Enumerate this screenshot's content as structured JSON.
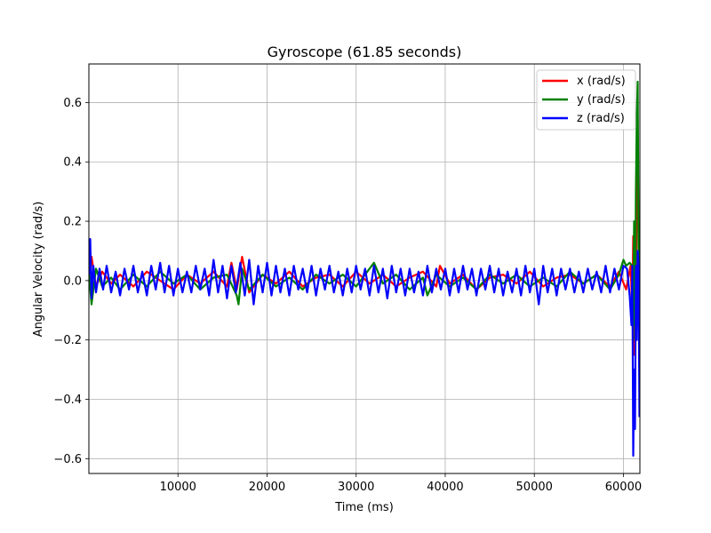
{
  "chart_data": {
    "type": "line",
    "title": "Gyroscope (61.85 seconds)",
    "xlabel": "Time (ms)",
    "ylabel": "Angular Velocity (rad/s)",
    "xlim": [
      0,
      61850
    ],
    "ylim": [
      -0.65,
      0.73
    ],
    "xticks": [
      10000,
      20000,
      30000,
      40000,
      50000,
      60000
    ],
    "xtick_labels": [
      "10000",
      "20000",
      "30000",
      "40000",
      "50000",
      "60000"
    ],
    "yticks": [
      -0.6,
      -0.4,
      -0.2,
      0.0,
      0.2,
      0.4,
      0.6
    ],
    "ytick_labels": [
      "−0.6",
      "−0.4",
      "−0.2",
      "0.0",
      "0.2",
      "0.4",
      "0.6"
    ],
    "grid": true,
    "legend_position": "upper-right",
    "series": [
      {
        "name": "x (rad/s)",
        "color": "#ff0000",
        "x": [
          0,
          300,
          800,
          1500,
          2500,
          3500,
          5000,
          6500,
          8000,
          9500,
          11000,
          12500,
          14000,
          15500,
          16000,
          16600,
          17200,
          18000,
          19500,
          21000,
          22500,
          24000,
          25500,
          27000,
          28500,
          30000,
          31500,
          33000,
          34500,
          36000,
          37500,
          39000,
          39400,
          40500,
          42000,
          43500,
          45000,
          46500,
          48000,
          49500,
          51000,
          52500,
          54000,
          55500,
          57000,
          58500,
          59500,
          60300,
          60800,
          61000,
          61100,
          61200,
          61300,
          61400,
          61500,
          61600,
          61700,
          61800
        ],
        "y": [
          0.02,
          0.08,
          -0.02,
          0.03,
          -0.01,
          0.02,
          -0.02,
          0.03,
          0.0,
          -0.03,
          0.02,
          -0.01,
          0.03,
          -0.02,
          0.06,
          -0.03,
          0.08,
          -0.04,
          0.02,
          -0.01,
          0.03,
          -0.02,
          0.01,
          0.02,
          -0.02,
          0.03,
          -0.01,
          0.02,
          -0.02,
          0.01,
          0.03,
          -0.02,
          0.05,
          -0.01,
          0.02,
          -0.03,
          0.01,
          0.02,
          -0.01,
          0.03,
          -0.02,
          0.01,
          0.02,
          -0.01,
          0.02,
          -0.02,
          0.03,
          -0.03,
          0.05,
          -0.1,
          0.15,
          -0.25,
          0.1,
          -0.05,
          0.35,
          0.5,
          0.1,
          -0.05
        ]
      },
      {
        "name": "y (rad/s)",
        "color": "#008000",
        "x": [
          0,
          300,
          800,
          1500,
          2500,
          3500,
          5000,
          6500,
          8000,
          9500,
          11000,
          12500,
          14000,
          15500,
          16600,
          16800,
          17200,
          18000,
          19500,
          21000,
          22500,
          24000,
          25500,
          27000,
          28500,
          30000,
          32000,
          33000,
          34500,
          36000,
          37500,
          38000,
          39000,
          40500,
          42000,
          43500,
          45000,
          46500,
          48000,
          49500,
          51000,
          52500,
          54000,
          55500,
          57000,
          58500,
          59500,
          60000,
          60300,
          60700,
          61000,
          61100,
          61200,
          61300,
          61400,
          61500,
          61600,
          61700,
          61800
        ],
        "y": [
          0.03,
          -0.08,
          0.04,
          -0.02,
          0.01,
          -0.03,
          0.02,
          -0.02,
          0.03,
          -0.01,
          0.02,
          -0.03,
          0.01,
          0.02,
          -0.05,
          -0.08,
          0.04,
          -0.03,
          0.02,
          -0.02,
          0.01,
          -0.03,
          0.02,
          -0.01,
          0.02,
          -0.02,
          0.06,
          -0.01,
          0.02,
          -0.03,
          0.01,
          -0.05,
          0.02,
          -0.02,
          0.01,
          -0.03,
          0.02,
          -0.01,
          0.02,
          -0.02,
          0.01,
          -0.02,
          0.03,
          -0.01,
          0.02,
          -0.03,
          0.02,
          0.07,
          0.05,
          0.06,
          0.05,
          -0.15,
          0.2,
          -0.2,
          0.3,
          0.55,
          0.67,
          0.1,
          -0.05
        ]
      },
      {
        "name": "z (rad/s)",
        "color": "#0000ff",
        "x": [
          0,
          150,
          300,
          500,
          800,
          1200,
          1600,
          2000,
          2500,
          3000,
          3500,
          4000,
          4500,
          5000,
          5500,
          6000,
          6500,
          7000,
          7500,
          8000,
          8500,
          9000,
          9500,
          10000,
          10500,
          11000,
          11500,
          12000,
          12500,
          13000,
          13500,
          14000,
          14500,
          15000,
          15500,
          16000,
          16500,
          17000,
          17500,
          18000,
          18500,
          19000,
          19500,
          20000,
          20500,
          21000,
          21500,
          22000,
          22500,
          23000,
          23500,
          24000,
          24500,
          25000,
          25500,
          26000,
          26500,
          27000,
          27500,
          28000,
          28500,
          29000,
          29500,
          30000,
          30500,
          31000,
          31500,
          32000,
          32500,
          33000,
          33500,
          34000,
          34500,
          35000,
          35500,
          36000,
          36500,
          37000,
          37500,
          38000,
          38500,
          39000,
          39500,
          40000,
          40500,
          41000,
          41500,
          42000,
          42500,
          43000,
          43500,
          44000,
          44500,
          45000,
          45500,
          46000,
          46500,
          47000,
          47500,
          48000,
          48500,
          49000,
          49500,
          50000,
          50500,
          51000,
          51500,
          52000,
          52500,
          53000,
          53500,
          54000,
          54500,
          55000,
          55500,
          56000,
          56500,
          57000,
          57500,
          58000,
          58500,
          59000,
          59500,
          60000,
          60400,
          60700,
          60900,
          61000,
          61100,
          61200,
          61300,
          61400,
          61500,
          61600,
          61700,
          61800
        ],
        "y": [
          0.02,
          0.14,
          -0.06,
          0.05,
          -0.04,
          0.04,
          -0.03,
          0.05,
          -0.04,
          0.03,
          -0.05,
          0.04,
          -0.03,
          0.05,
          -0.04,
          0.03,
          -0.05,
          0.05,
          -0.03,
          0.06,
          -0.04,
          0.05,
          -0.05,
          0.04,
          -0.04,
          0.03,
          -0.04,
          0.05,
          -0.03,
          0.04,
          -0.05,
          0.07,
          -0.04,
          0.05,
          -0.06,
          0.05,
          -0.04,
          0.06,
          -0.05,
          0.07,
          -0.08,
          0.05,
          -0.04,
          0.06,
          -0.05,
          0.05,
          -0.04,
          0.04,
          -0.05,
          0.05,
          -0.03,
          0.04,
          -0.04,
          0.05,
          -0.05,
          0.04,
          -0.03,
          0.05,
          -0.04,
          0.03,
          -0.05,
          0.04,
          -0.04,
          0.05,
          -0.03,
          0.04,
          -0.05,
          0.05,
          -0.04,
          0.04,
          -0.06,
          0.05,
          -0.04,
          0.04,
          -0.05,
          0.04,
          -0.04,
          0.03,
          -0.05,
          0.05,
          -0.04,
          0.04,
          -0.03,
          0.04,
          -0.05,
          0.04,
          -0.04,
          0.05,
          -0.03,
          0.04,
          -0.05,
          0.04,
          -0.03,
          0.05,
          -0.04,
          0.04,
          -0.05,
          0.03,
          -0.04,
          0.04,
          -0.05,
          0.05,
          -0.04,
          0.04,
          -0.08,
          0.05,
          -0.04,
          0.04,
          -0.05,
          0.04,
          -0.03,
          0.04,
          -0.04,
          0.03,
          -0.04,
          0.04,
          -0.03,
          0.03,
          -0.04,
          0.05,
          -0.04,
          0.04,
          -0.03,
          0.05,
          0.04,
          -0.05,
          -0.15,
          0.05,
          -0.59,
          -0.3,
          -0.5,
          0.05,
          -0.2,
          0.1,
          0.05,
          -0.46
        ]
      }
    ]
  }
}
